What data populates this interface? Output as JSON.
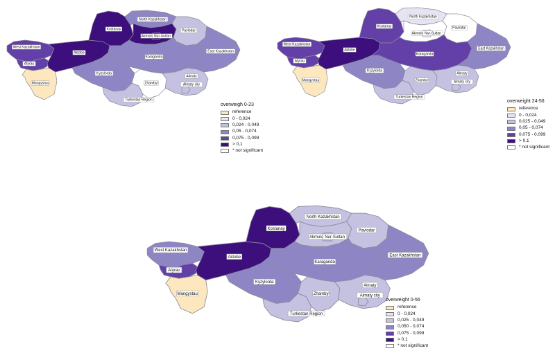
{
  "colors": {
    "reference": "#fce7bf",
    "c1": "#e6e4f3",
    "c2": "#c4c1e1",
    "c3": "#8e86c4",
    "c4": "#6340a8",
    "c5": "#3d0f7c",
    "ns": "#ffffff"
  },
  "maps": [
    {
      "legend": {
        "title": "overweigh 0-23",
        "items": [
          {
            "label": "reference",
            "color": "reference"
          },
          {
            "label": "0 - 0,024",
            "color": "c1"
          },
          {
            "label": "0,024 - 0,049",
            "color": "c2"
          },
          {
            "label": "0,05 - 0,074",
            "color": "c3"
          },
          {
            "label": "0,075 - 0,099",
            "color": "c4"
          },
          {
            "label": "> 0,1",
            "color": "c5"
          },
          {
            "label": "* not significant",
            "color": "ns"
          }
        ]
      },
      "regions": {
        "west_kazakhstan": {
          "name": "West Kazakhstan",
          "color": "c4"
        },
        "atyrau": {
          "name": "Atyrau",
          "color": "c4"
        },
        "mangystau": {
          "name": "Mangystau",
          "color": "reference"
        },
        "aktobe": {
          "name": "Aktobe",
          "color": "c5"
        },
        "kostanay": {
          "name": "Kostanay",
          "color": "c5"
        },
        "north_kazakhstan": {
          "name": "North Kazakhstan",
          "color": "c3"
        },
        "akmola": {
          "name": "Akmola",
          "color": "c5"
        },
        "nur_sultan": {
          "name": "Nur-Sultan",
          "color": "c5"
        },
        "pavlodar": {
          "name": "Pavlodar",
          "color": "c2"
        },
        "karaganda": {
          "name": "Karaganda",
          "color": "c3"
        },
        "east_kazakhstan": {
          "name": "East Kazakhstan",
          "color": "c3"
        },
        "kyzylorda": {
          "name": "Kyzylorda",
          "color": "c3"
        },
        "turkestan": {
          "name": "Turkestan Region",
          "color": "c2"
        },
        "zhambyl": {
          "name": "Zhambyl",
          "color": "ns"
        },
        "almaty": {
          "name": "Almaty",
          "color": "c2"
        },
        "almaty_city": {
          "name": "Almaty city",
          "color": "c2"
        }
      }
    },
    {
      "legend": {
        "title": "overweight 24-56",
        "items": [
          {
            "label": "reference",
            "color": "reference"
          },
          {
            "label": "0 - 0,024",
            "color": "c1"
          },
          {
            "label": "0,025 - 0,049",
            "color": "c2"
          },
          {
            "label": "0,05 - 0,074",
            "color": "c3"
          },
          {
            "label": "0,075 - 0,099",
            "color": "c4"
          },
          {
            "label": "> 0,1",
            "color": "c5"
          },
          {
            "label": "* not significant",
            "color": "ns"
          }
        ]
      },
      "regions": {
        "west_kazakhstan": {
          "name": "West Kazakhstan",
          "color": "c4"
        },
        "atyrau": {
          "name": "Atyrau",
          "color": "c4"
        },
        "mangystau": {
          "name": "Mangystau",
          "color": "reference"
        },
        "aktobe": {
          "name": "Aktobe",
          "color": "c5"
        },
        "kostanay": {
          "name": "Kostanay",
          "color": "c4"
        },
        "north_kazakhstan": {
          "name": "North Kazakhstan",
          "color": "c1"
        },
        "akmola": {
          "name": "Akmola",
          "color": "ns"
        },
        "nur_sultan": {
          "name": "Nur-Sultan",
          "color": "ns"
        },
        "pavlodar": {
          "name": "Pavlodar",
          "color": "ns"
        },
        "karaganda": {
          "name": "Karaganda",
          "color": "c4"
        },
        "east_kazakhstan": {
          "name": "East Kazakhstan",
          "color": "c3"
        },
        "kyzylorda": {
          "name": "Kyzylorda",
          "color": "c3"
        },
        "turkestan": {
          "name": "Turkestan Region",
          "color": "c2"
        },
        "zhambyl": {
          "name": "Zhambyl",
          "color": "c2"
        },
        "almaty": {
          "name": "Almaty",
          "color": "c2"
        },
        "almaty_city": {
          "name": "Almaty city",
          "color": "c2"
        }
      }
    },
    {
      "legend": {
        "title": "overweight 0-56",
        "items": [
          {
            "label": "reference",
            "color": "reference"
          },
          {
            "label": "0 - 0,024",
            "color": "c1"
          },
          {
            "label": "0,025 - 0,049",
            "color": "c2"
          },
          {
            "label": "0,050 - 0,074",
            "color": "c3"
          },
          {
            "label": "0,075 - 0,099",
            "color": "c4"
          },
          {
            "label": "> 0,1",
            "color": "c5"
          },
          {
            "label": "* not significant",
            "color": "ns"
          }
        ]
      },
      "regions": {
        "west_kazakhstan": {
          "name": "West Kazakhstan",
          "color": "c3"
        },
        "atyrau": {
          "name": "Atyrau",
          "color": "c4"
        },
        "mangystau": {
          "name": "Mangystau",
          "color": "reference"
        },
        "aktobe": {
          "name": "Aktobe",
          "color": "c5"
        },
        "kostanay": {
          "name": "Kostanay",
          "color": "c5"
        },
        "north_kazakhstan": {
          "name": "North Kazakhstan",
          "color": "c2"
        },
        "akmola": {
          "name": "Akmola",
          "color": "c2"
        },
        "nur_sultan": {
          "name": "Nur-Sultan",
          "color": "c2"
        },
        "pavlodar": {
          "name": "Pavlodar",
          "color": "c2"
        },
        "karaganda": {
          "name": "Karaganda",
          "color": "c3"
        },
        "east_kazakhstan": {
          "name": "East Kazakhstan",
          "color": "c3"
        },
        "kyzylorda": {
          "name": "Kyzylorda",
          "color": "c3"
        },
        "turkestan": {
          "name": "Turkestan Region",
          "color": "c2"
        },
        "zhambyl": {
          "name": "Zhambyl",
          "color": "c2"
        },
        "almaty": {
          "name": "Almaty",
          "color": "c2"
        },
        "almaty_city": {
          "name": "Almaty city",
          "color": "c2"
        }
      }
    }
  ]
}
